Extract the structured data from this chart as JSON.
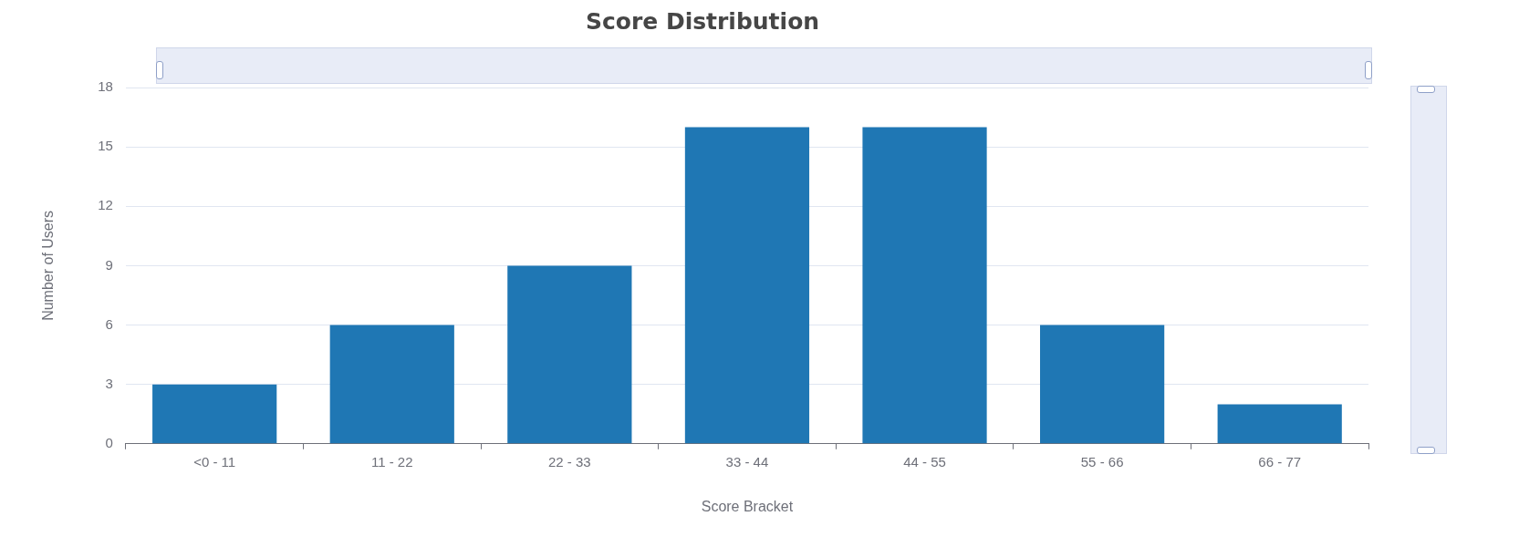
{
  "chart_data": {
    "type": "bar",
    "title": "Score Distribution",
    "xlabel": "Score Bracket",
    "ylabel": "Number of Users",
    "categories": [
      "<0 - 11",
      "11 - 22",
      "22 - 33",
      "33 - 44",
      "44 - 55",
      "55 - 66",
      "66 - 77"
    ],
    "values": [
      3,
      6,
      9,
      16,
      16,
      6,
      2
    ],
    "color": "#1f77b4",
    "ylim": [
      0,
      18
    ],
    "yticks": [
      0,
      3,
      6,
      9,
      12,
      15,
      18
    ],
    "grid": "y",
    "legend": false
  }
}
